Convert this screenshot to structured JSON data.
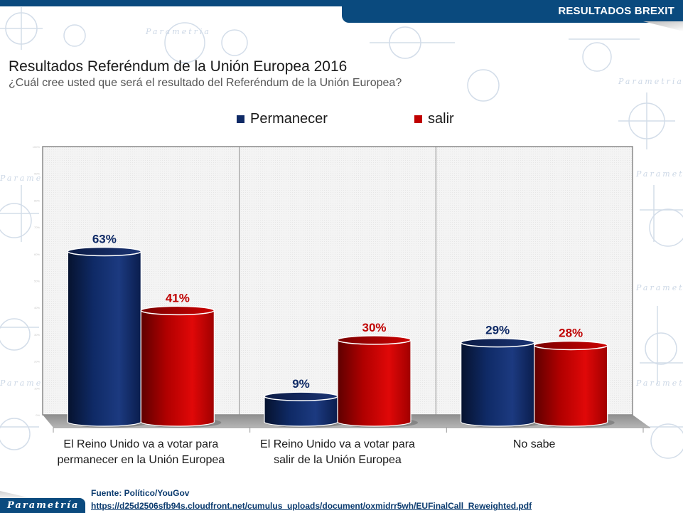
{
  "header": {
    "title": "RESULTADOS BREXIT"
  },
  "page": {
    "title": "Resultados Referéndum de la Unión Europea 2016",
    "subtitle": "¿Cuál cree usted que será el resultado del Referéndum de la Unión Europea?"
  },
  "colors": {
    "permanecer": "#0f2a66",
    "salir": "#c00000",
    "brand": "#0a4a7e"
  },
  "chart_data": {
    "type": "bar",
    "title": "Resultados Referéndum de la Unión Europea 2016",
    "subtitle": "¿Cuál cree usted que será el resultado del Referéndum de la Unión Europea?",
    "categories": [
      "El Reino Unido va a votar para permanecer en la Unión Europea",
      "El Reino Unido va a votar para salir de la Unión Europea",
      "No sabe"
    ],
    "category_lines": [
      [
        "El Reino Unido va a votar para",
        "permanecer en la Unión Europea"
      ],
      [
        "El Reino Unido va a votar para",
        "salir de la Unión Europea"
      ],
      [
        "No sabe"
      ]
    ],
    "series": [
      {
        "name": "Permanecer",
        "values": [
          63,
          9,
          29
        ],
        "labels": [
          "63%",
          "9%",
          "29%"
        ]
      },
      {
        "name": "salir",
        "values": [
          41,
          30,
          28
        ],
        "labels": [
          "41%",
          "30%",
          "28%"
        ]
      }
    ],
    "xlabel": "",
    "ylabel": "",
    "ylim": [
      0,
      100
    ],
    "yticks": [
      "0%",
      "10%",
      "20%",
      "30%",
      "40%",
      "50%",
      "60%",
      "70%",
      "80%",
      "90%",
      "100%"
    ],
    "grid": false,
    "legend": "top-center",
    "style": "3d-cylinder"
  },
  "footer": {
    "source": "Fuente: Político/YouGov",
    "url": "https://d25d2506sfb94s.cloudfront.net/cumulus_uploads/document/oxmidrr5wh/EUFinalCall_Reweighted.pdf",
    "logo": "Parametría"
  },
  "watermark": "Parametria"
}
